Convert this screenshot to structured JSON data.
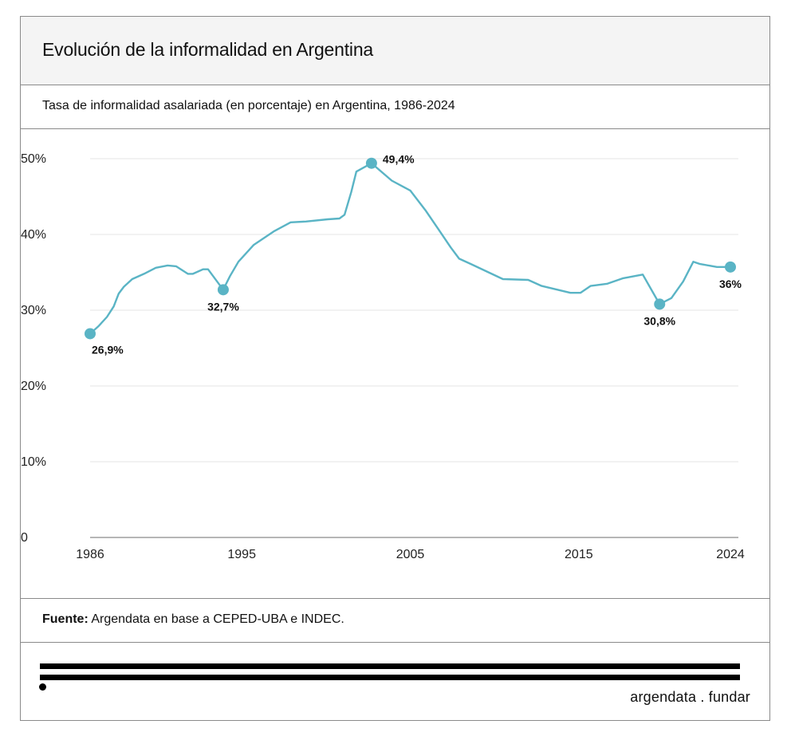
{
  "header": {
    "title": "Evolución de la informalidad en Argentina",
    "subtitle": "Tasa de informalidad asalariada (en porcentaje) en Argentina, 1986-2024"
  },
  "source": {
    "label": "Fuente:",
    "text": " Argendata en base a CEPED-UBA e INDEC."
  },
  "footer": {
    "brand": "argendata . fundar"
  },
  "colors": {
    "line": "#5ab4c5",
    "grid": "#e6e6e6",
    "axis": "#8a8a8a"
  },
  "chart_data": {
    "type": "line",
    "title": "Evolución de la informalidad en Argentina",
    "subtitle": "Tasa de informalidad asalariada (en porcentaje) en Argentina, 1986-2024",
    "xlabel": "",
    "ylabel": "",
    "xlim": [
      1986,
      2024
    ],
    "ylim": [
      0,
      50
    ],
    "grid": true,
    "legend": "none",
    "x_ticks": [
      {
        "value": 1986,
        "label": "1986"
      },
      {
        "value": 1995,
        "label": "1995"
      },
      {
        "value": 2005,
        "label": "2005"
      },
      {
        "value": 2015,
        "label": "2015"
      },
      {
        "value": 2024,
        "label": "2024"
      }
    ],
    "y_ticks": [
      {
        "value": 0,
        "label": "0"
      },
      {
        "value": 10,
        "label": "10%"
      },
      {
        "value": 20,
        "label": "20%"
      },
      {
        "value": 30,
        "label": "30%"
      },
      {
        "value": 40,
        "label": "40%"
      },
      {
        "value": 50,
        "label": "50%"
      }
    ],
    "series": [
      {
        "name": "Tasa de informalidad asalariada",
        "points": [
          [
            1986.0,
            26.9
          ],
          [
            1986.5,
            27.9
          ],
          [
            1987.0,
            29.1
          ],
          [
            1987.4,
            30.5
          ],
          [
            1987.7,
            32.2
          ],
          [
            1988.0,
            33.1
          ],
          [
            1988.5,
            34.1
          ],
          [
            1989.2,
            34.8
          ],
          [
            1989.9,
            35.6
          ],
          [
            1990.6,
            35.9
          ],
          [
            1991.1,
            35.8
          ],
          [
            1991.8,
            34.8
          ],
          [
            1992.1,
            34.8
          ],
          [
            1992.7,
            35.4
          ],
          [
            1993.0,
            35.4
          ],
          [
            1993.9,
            32.7
          ],
          [
            1994.3,
            34.5
          ],
          [
            1994.8,
            36.4
          ],
          [
            1995.7,
            38.6
          ],
          [
            1996.9,
            40.4
          ],
          [
            1997.9,
            41.6
          ],
          [
            1998.8,
            41.7
          ],
          [
            2000.1,
            42.0
          ],
          [
            2000.8,
            42.1
          ],
          [
            2001.1,
            42.6
          ],
          [
            2001.5,
            45.6
          ],
          [
            2001.8,
            48.3
          ],
          [
            2002.7,
            49.4
          ],
          [
            2003.9,
            47.1
          ],
          [
            2005.0,
            45.8
          ],
          [
            2005.9,
            43.2
          ],
          [
            2006.7,
            40.6
          ],
          [
            2007.4,
            38.3
          ],
          [
            2007.9,
            36.8
          ],
          [
            2008.6,
            36.1
          ],
          [
            2010.5,
            34.1
          ],
          [
            2012.0,
            34.0
          ],
          [
            2012.8,
            33.2
          ],
          [
            2014.5,
            32.3
          ],
          [
            2015.1,
            32.3
          ],
          [
            2015.7,
            33.2
          ],
          [
            2016.7,
            33.5
          ],
          [
            2017.6,
            34.2
          ],
          [
            2018.8,
            34.7
          ],
          [
            2019.8,
            30.8
          ],
          [
            2020.5,
            31.6
          ],
          [
            2021.2,
            33.8
          ],
          [
            2021.8,
            36.4
          ],
          [
            2022.2,
            36.1
          ],
          [
            2023.2,
            35.7
          ],
          [
            2024.0,
            35.7
          ]
        ]
      }
    ],
    "highlights": [
      {
        "x": 1986.0,
        "y": 26.9,
        "label": "26,9%",
        "pos": "below-right"
      },
      {
        "x": 1993.9,
        "y": 32.7,
        "label": "32,7%",
        "pos": "below"
      },
      {
        "x": 2002.7,
        "y": 49.4,
        "label": "49,4%",
        "pos": "right"
      },
      {
        "x": 2019.8,
        "y": 30.8,
        "label": "30,8%",
        "pos": "below"
      },
      {
        "x": 2024.0,
        "y": 35.7,
        "label": "36%",
        "pos": "below"
      }
    ]
  }
}
